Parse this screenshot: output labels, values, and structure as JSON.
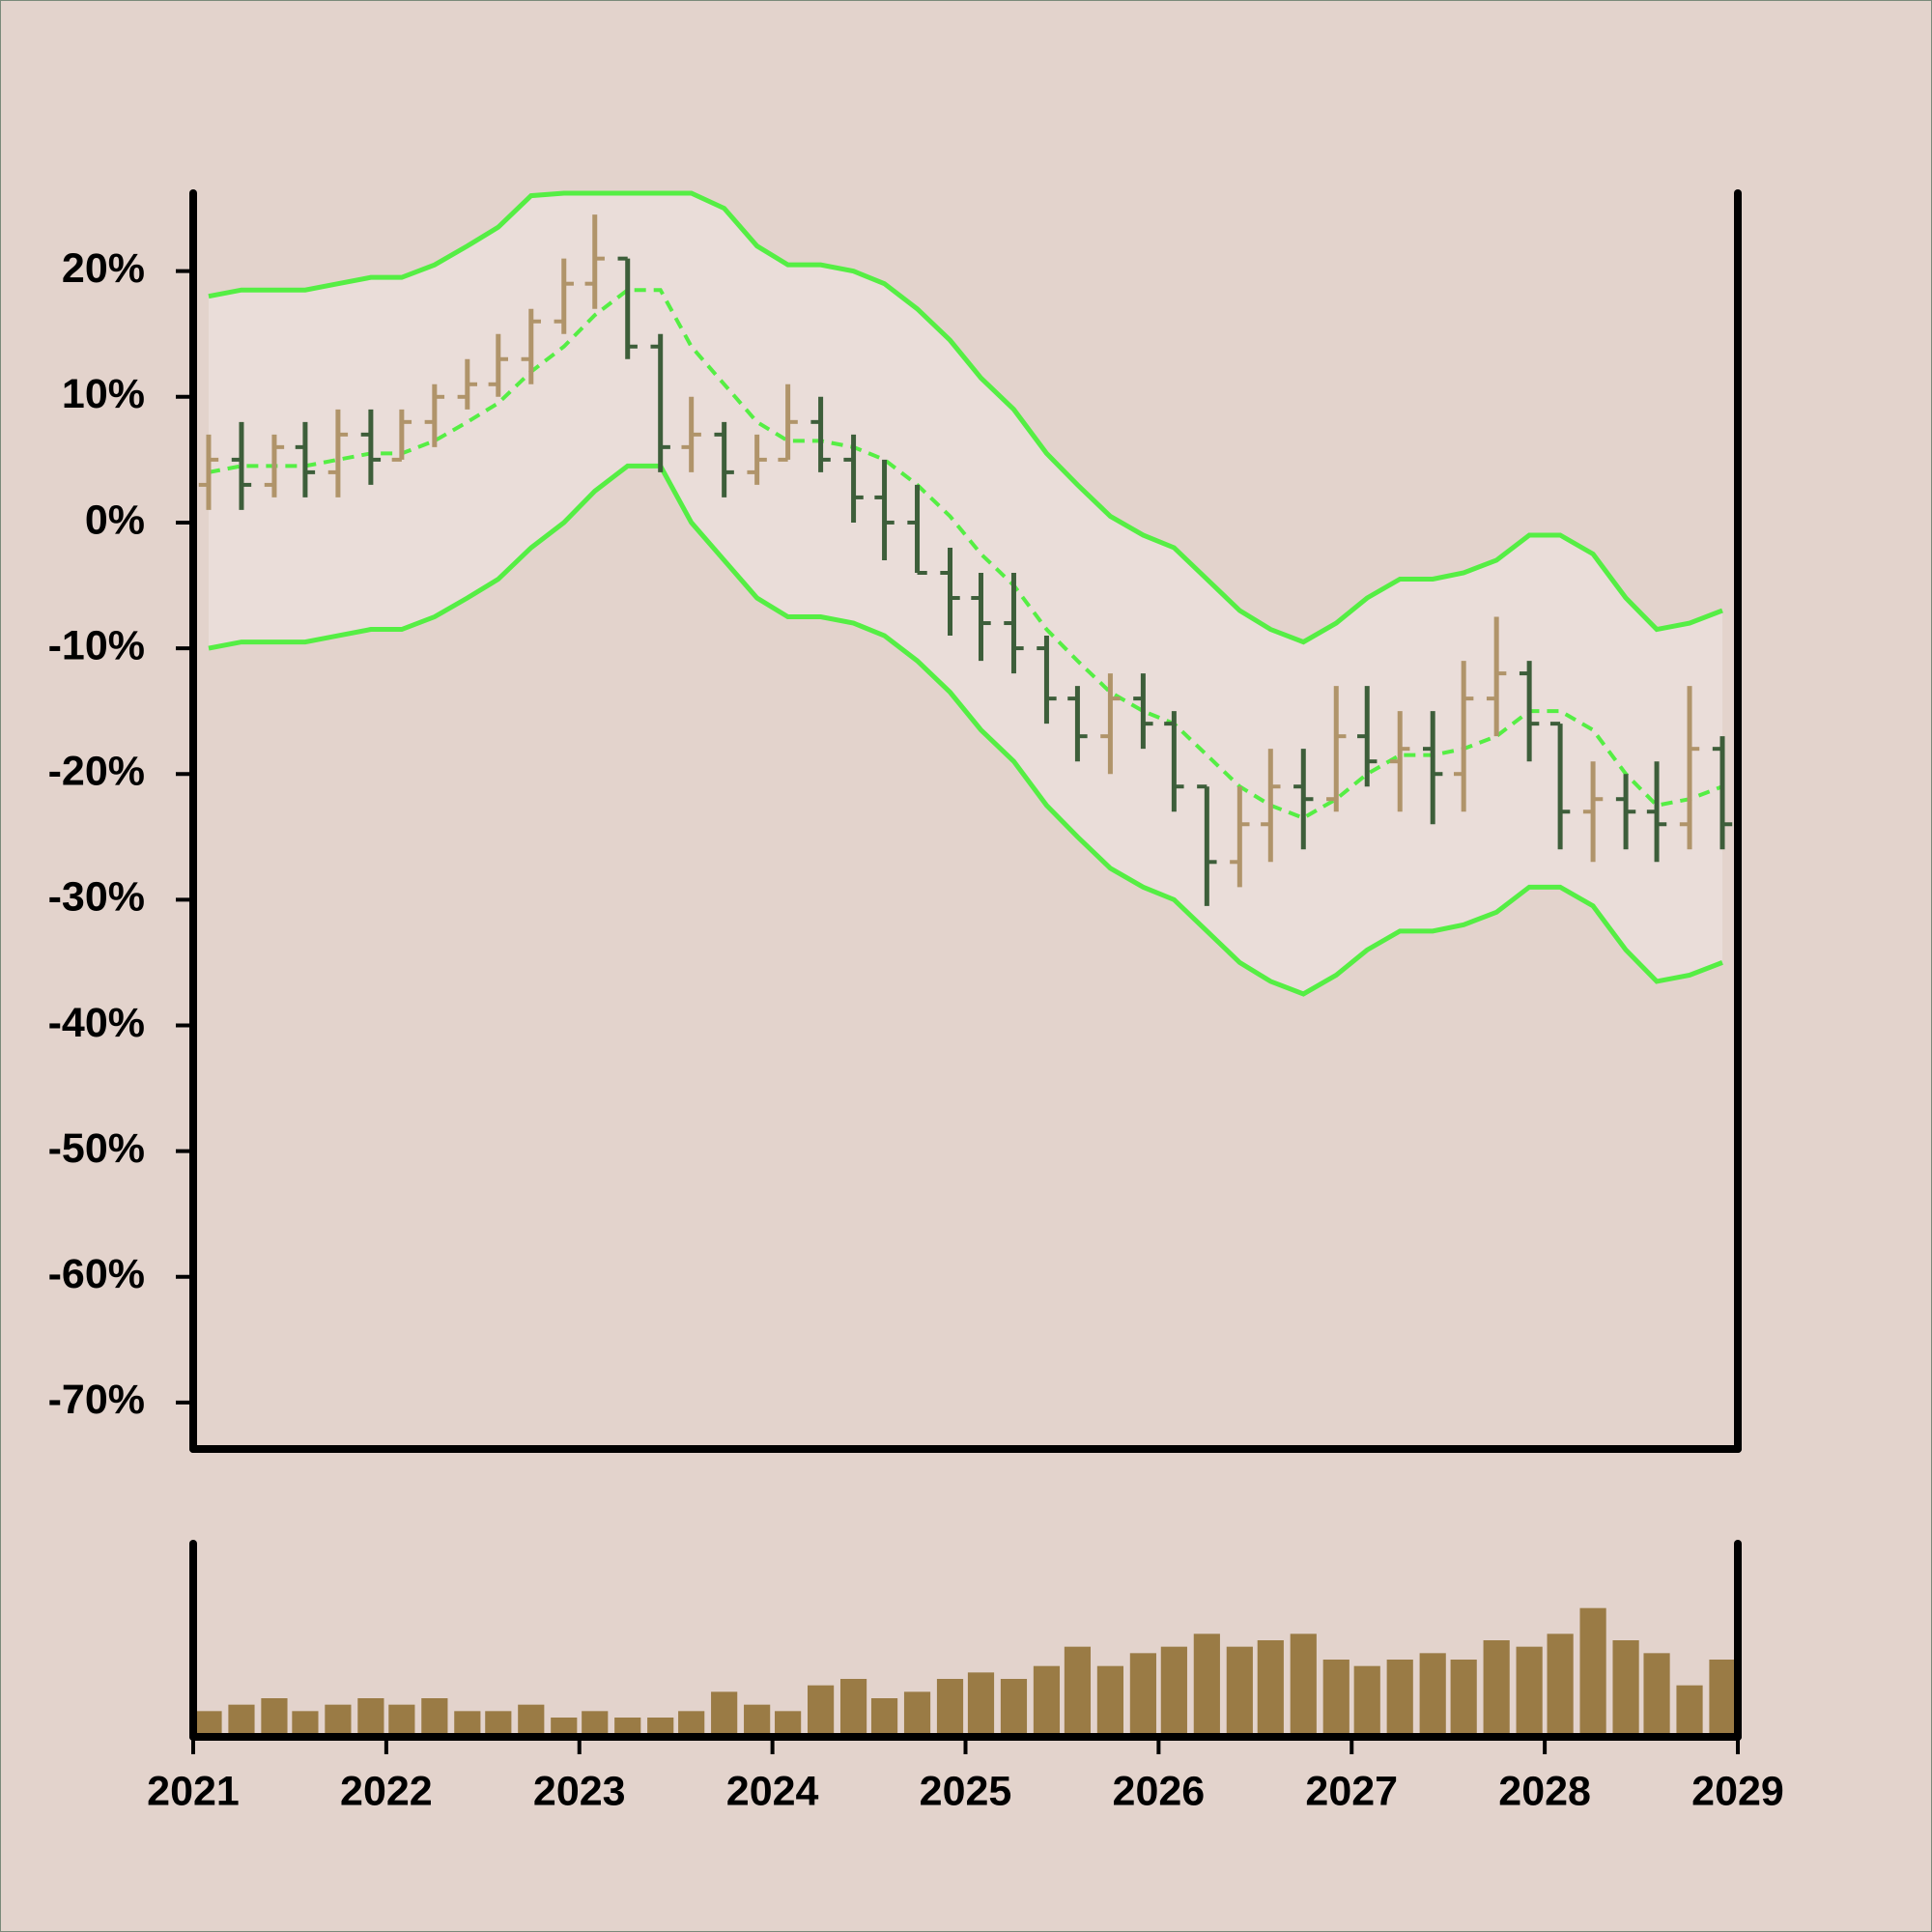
{
  "chart_data": {
    "type": "ohlc",
    "x": [
      2021.08,
      2021.25,
      2021.42,
      2021.58,
      2021.75,
      2021.92,
      2022.08,
      2022.25,
      2022.42,
      2022.58,
      2022.75,
      2022.92,
      2023.08,
      2023.25,
      2023.42,
      2023.58,
      2023.75,
      2023.92,
      2024.08,
      2024.25,
      2024.42,
      2024.58,
      2024.75,
      2024.92,
      2025.08,
      2025.25,
      2025.42,
      2025.58,
      2025.75,
      2025.92,
      2026.08,
      2026.25,
      2026.42,
      2026.58,
      2026.75,
      2026.92,
      2027.08,
      2027.25,
      2027.42,
      2027.58,
      2027.75,
      2027.92,
      2028.08,
      2028.25,
      2028.42,
      2028.58,
      2028.75,
      2028.92
    ],
    "open": [
      3,
      5,
      3,
      6,
      4,
      7,
      5,
      8,
      10,
      11,
      13,
      16,
      19,
      21,
      14,
      6,
      7,
      4,
      5,
      8,
      5,
      2,
      0,
      -4,
      -6,
      -8,
      -10,
      -14,
      -17,
      -14,
      -16,
      -21,
      -27,
      -24,
      -21,
      -22,
      -17,
      -19,
      -18,
      -20,
      -14,
      -12,
      -16,
      -23,
      -22,
      -23,
      -24,
      -18
    ],
    "high": [
      7,
      8,
      7,
      8,
      9,
      9,
      9,
      11,
      13,
      15,
      17,
      21,
      24.5,
      21,
      15,
      10,
      8,
      7,
      11,
      10,
      7,
      5,
      3,
      -2,
      -4,
      -4,
      -9,
      -13,
      -12,
      -12,
      -15,
      -21,
      -21,
      -18,
      -18,
      -13,
      -13,
      -15,
      -15,
      -11,
      -7.5,
      -11,
      -16,
      -19,
      -20,
      -19,
      -13,
      -17
    ],
    "low": [
      1,
      1,
      2,
      2,
      2,
      3,
      5,
      6,
      9,
      10,
      11,
      15,
      17,
      13,
      4,
      4,
      2,
      3,
      5,
      4,
      0,
      -3,
      -4,
      -9,
      -11,
      -12,
      -16,
      -19,
      -20,
      -18,
      -23,
      -30.5,
      -29,
      -27,
      -26,
      -23,
      -21,
      -23,
      -24,
      -23,
      -17,
      -19,
      -26,
      -27,
      -26,
      -27,
      -26,
      -26
    ],
    "close": [
      5,
      3,
      6,
      4,
      7,
      5,
      8,
      10,
      11,
      13,
      16,
      19,
      21,
      14,
      6,
      7,
      4,
      5,
      8,
      5,
      2,
      0,
      -4,
      -6,
      -8,
      -10,
      -14,
      -17,
      -14,
      -16,
      -21,
      -27,
      -24,
      -21,
      -22,
      -17,
      -19,
      -18,
      -20,
      -14,
      -12,
      -16,
      -23,
      -22,
      -23,
      -24,
      -18,
      -24
    ],
    "up_color": "#b0946a",
    "down_color": "#3d5e3a",
    "bands": {
      "color": "#55ee44",
      "fill": "#eaddd9",
      "upper": [
        18,
        18.5,
        18.5,
        18.5,
        19,
        19.5,
        19.5,
        20.5,
        22,
        23.5,
        26,
        26.2,
        26.2,
        26.2,
        26.2,
        26.2,
        25,
        22,
        20.5,
        20.5,
        20,
        19,
        17,
        14.5,
        11.5,
        9,
        5.5,
        3,
        0.5,
        -1,
        -2,
        -4.5,
        -7,
        -8.5,
        -9.5,
        -8,
        -6,
        -4.5,
        -4.5,
        -4,
        -3,
        -1,
        -1,
        -2.5,
        -6,
        -8.5,
        -8,
        -7
      ],
      "middle": [
        4,
        4.5,
        4.5,
        4.5,
        5,
        5.5,
        5.5,
        6.5,
        8,
        9.5,
        12,
        14,
        16.5,
        18.5,
        18.5,
        14,
        11,
        8,
        6.5,
        6.5,
        6,
        5,
        3,
        0.5,
        -2.5,
        -5,
        -8.5,
        -11,
        -13.5,
        -15,
        -16,
        -18.5,
        -21,
        -22.5,
        -23.5,
        -22,
        -20,
        -18.5,
        -18.5,
        -18,
        -17,
        -15,
        -15,
        -16.5,
        -20,
        -22.5,
        -22,
        -21
      ],
      "lower": [
        -10,
        -9.5,
        -9.5,
        -9.5,
        -9,
        -8.5,
        -8.5,
        -7.5,
        -6,
        -4.5,
        -2,
        0,
        2.5,
        4.5,
        4.5,
        0,
        -3,
        -6,
        -7.5,
        -7.5,
        -8,
        -9,
        -11,
        -13.5,
        -16.5,
        -19,
        -22.5,
        -25,
        -27.5,
        -29,
        -30,
        -32.5,
        -35,
        -36.5,
        -37.5,
        -36,
        -34,
        -32.5,
        -32.5,
        -32,
        -31,
        -29,
        -29,
        -30.5,
        -34,
        -36.5,
        -36,
        -35
      ]
    },
    "volume": {
      "color": "#9a7b45",
      "ylim": [
        0,
        150
      ],
      "values": [
        20,
        25,
        30,
        20,
        25,
        30,
        25,
        30,
        20,
        20,
        25,
        15,
        20,
        15,
        15,
        20,
        35,
        25,
        20,
        40,
        45,
        30,
        35,
        45,
        50,
        45,
        55,
        70,
        55,
        65,
        70,
        80,
        70,
        75,
        80,
        60,
        55,
        60,
        65,
        60,
        75,
        70,
        80,
        100,
        75,
        65,
        40,
        60
      ]
    },
    "xlim": [
      2021,
      2029
    ],
    "xticks": [
      2021,
      2022,
      2023,
      2024,
      2025,
      2026,
      2027,
      2028,
      2029
    ],
    "ylim": [
      -73.7,
      26.2
    ],
    "yticks": [
      {
        "value": 20,
        "label": "20%"
      },
      {
        "value": 10,
        "label": "10%"
      },
      {
        "value": 0,
        "label": "0%"
      },
      {
        "value": -10,
        "label": "-10%"
      },
      {
        "value": -20,
        "label": "-20%"
      },
      {
        "value": -30,
        "label": "-30%"
      },
      {
        "value": -40,
        "label": "-40%"
      },
      {
        "value": -50,
        "label": "-50%"
      },
      {
        "value": -60,
        "label": "-60%"
      },
      {
        "value": -70,
        "label": "-70%"
      }
    ]
  }
}
